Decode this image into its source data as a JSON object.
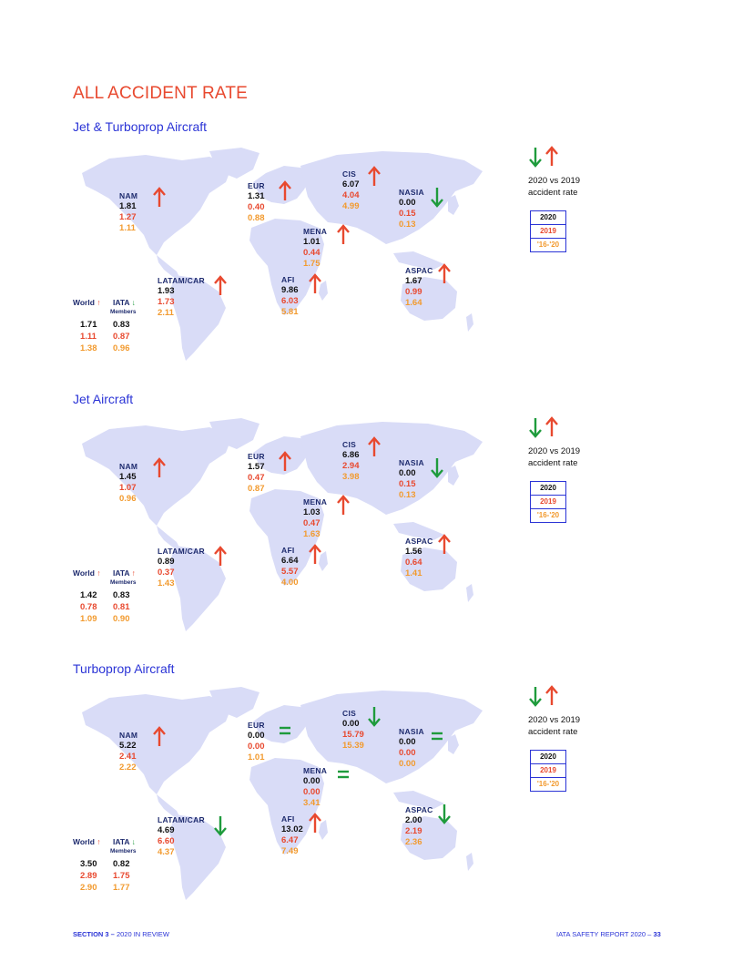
{
  "title": "ALL ACCIDENT RATE",
  "legend": {
    "compare_text": "2020 vs 2019",
    "compare_text2": "accident rate",
    "boxes": [
      "2020",
      "2019",
      "'16-'20"
    ]
  },
  "world_header": {
    "world": "World",
    "iata": "IATA",
    "members": "Members"
  },
  "colors": {
    "accent": "#e8492f",
    "blue": "#2b34d6",
    "orange": "#f29a2e",
    "green": "#1e9b3c",
    "map": "#d9dcf7"
  },
  "sections": [
    {
      "title": "Jet & Turboprop Aircraft",
      "world": {
        "world_arrow": "up",
        "iata_arrow": "down",
        "world": [
          "1.71",
          "1.11",
          "1.38"
        ],
        "iata": [
          "0.83",
          "0.87",
          "0.96"
        ]
      },
      "regions": [
        {
          "name": "NAM",
          "values": [
            "1.81",
            "1.27",
            "1.11"
          ],
          "trend": "up"
        },
        {
          "name": "EUR",
          "values": [
            "1.31",
            "0.40",
            "0.88"
          ],
          "trend": "up"
        },
        {
          "name": "CIS",
          "values": [
            "6.07",
            "4.04",
            "4.99"
          ],
          "trend": "up"
        },
        {
          "name": "NASIA",
          "values": [
            "0.00",
            "0.15",
            "0.13"
          ],
          "trend": "down"
        },
        {
          "name": "MENA",
          "values": [
            "1.01",
            "0.44",
            "1.75"
          ],
          "trend": "up"
        },
        {
          "name": "LATAM/CAR",
          "values": [
            "1.93",
            "1.73",
            "2.11"
          ],
          "trend": "up"
        },
        {
          "name": "AFI",
          "values": [
            "9.86",
            "6.03",
            "5.81"
          ],
          "trend": "up"
        },
        {
          "name": "ASPAC",
          "values": [
            "1.67",
            "0.99",
            "1.64"
          ],
          "trend": "up"
        }
      ]
    },
    {
      "title": "Jet Aircraft",
      "world": {
        "world_arrow": "up",
        "iata_arrow": "up",
        "world": [
          "1.42",
          "0.78",
          "1.09"
        ],
        "iata": [
          "0.83",
          "0.81",
          "0.90"
        ]
      },
      "regions": [
        {
          "name": "NAM",
          "values": [
            "1.45",
            "1.07",
            "0.96"
          ],
          "trend": "up"
        },
        {
          "name": "EUR",
          "values": [
            "1.57",
            "0.47",
            "0.87"
          ],
          "trend": "up"
        },
        {
          "name": "CIS",
          "values": [
            "6.86",
            "2.94",
            "3.98"
          ],
          "trend": "up"
        },
        {
          "name": "NASIA",
          "values": [
            "0.00",
            "0.15",
            "0.13"
          ],
          "trend": "down"
        },
        {
          "name": "MENA",
          "values": [
            "1.03",
            "0.47",
            "1.63"
          ],
          "trend": "up"
        },
        {
          "name": "LATAM/CAR",
          "values": [
            "0.89",
            "0.37",
            "1.43"
          ],
          "trend": "up"
        },
        {
          "name": "AFI",
          "values": [
            "6.64",
            "5.57",
            "4.00"
          ],
          "trend": "up"
        },
        {
          "name": "ASPAC",
          "values": [
            "1.56",
            "0.64",
            "1.41"
          ],
          "trend": "up"
        }
      ]
    },
    {
      "title": "Turboprop Aircraft",
      "world": {
        "world_arrow": "up",
        "iata_arrow": "down",
        "world": [
          "3.50",
          "2.89",
          "2.90"
        ],
        "iata": [
          "0.82",
          "1.75",
          "1.77"
        ]
      },
      "regions": [
        {
          "name": "NAM",
          "values": [
            "5.22",
            "2.41",
            "2.22"
          ],
          "trend": "up"
        },
        {
          "name": "EUR",
          "values": [
            "0.00",
            "0.00",
            "1.01"
          ],
          "trend": "equal"
        },
        {
          "name": "CIS",
          "values": [
            "0.00",
            "15.79",
            "15.39"
          ],
          "trend": "down"
        },
        {
          "name": "NASIA",
          "values": [
            "0.00",
            "0.00",
            "0.00"
          ],
          "trend": "equal"
        },
        {
          "name": "MENA",
          "values": [
            "0.00",
            "0.00",
            "3.41"
          ],
          "trend": "equal"
        },
        {
          "name": "LATAM/CAR",
          "values": [
            "4.69",
            "6.60",
            "4.37"
          ],
          "trend": "down"
        },
        {
          "name": "AFI",
          "values": [
            "13.02",
            "6.47",
            "7.49"
          ],
          "trend": "up"
        },
        {
          "name": "ASPAC",
          "values": [
            "2.00",
            "2.19",
            "2.36"
          ],
          "trend": "down"
        }
      ]
    }
  ],
  "footer": {
    "left_bold": "SECTION 3 –",
    "left": "2020 IN REVIEW",
    "right": "IATA SAFETY REPORT 2020 –",
    "right_bold": "33"
  }
}
